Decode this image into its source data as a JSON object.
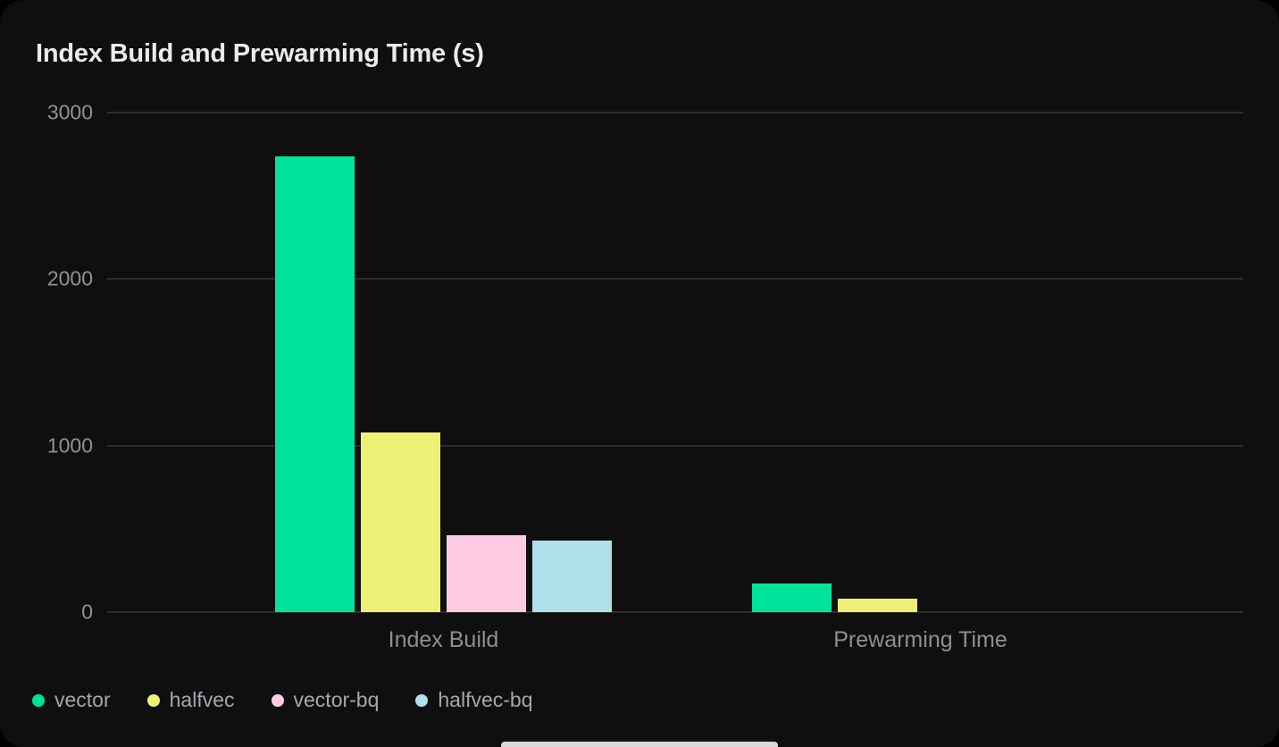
{
  "page": {
    "background_color": "#000000",
    "card_color": "#0f0f0f"
  },
  "theme": {
    "grid_color": "#2d2d2d",
    "tick_text_color": "#8f9297",
    "category_text_color": "#8b9096",
    "legend_text_color": "#a3a8ae",
    "title_color": "#ebebec"
  },
  "chart_data": {
    "type": "bar",
    "title": "Index Build and Prewarming Time (s)",
    "unit": "s",
    "categories": [
      "Index Build",
      "Prewarming Time"
    ],
    "series": [
      {
        "name": "vector",
        "color": "#00e39b",
        "values": [
          2735,
          173
        ]
      },
      {
        "name": "halfvec",
        "color": "#eef075",
        "values": [
          1080,
          78
        ]
      },
      {
        "name": "vector-bq",
        "color": "#ffcbe3",
        "values": [
          460,
          0
        ]
      },
      {
        "name": "halfvec-bq",
        "color": "#aee0ec",
        "values": [
          428,
          0
        ]
      }
    ],
    "ylim": [
      0,
      3000
    ],
    "yticks": [
      0,
      1000,
      2000,
      3000
    ],
    "grid": true,
    "legend_position": "bottom-left"
  }
}
